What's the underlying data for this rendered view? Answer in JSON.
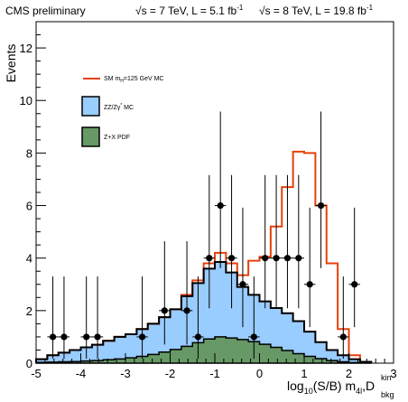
{
  "chart_data": {
    "type": "histogram",
    "header": {
      "left": "CMS preliminary",
      "sqrt_s_7": "s = 7 TeV, L = 5.1 fb",
      "sqrt_s_8": "s = 8 TeV, L = 19.8 fb",
      "sup": "-1"
    },
    "ylabel": "Events",
    "xlabel": {
      "main": "log",
      "sub1": "10",
      "mid": "(S/B) m",
      "sub2": "4l",
      "sep": ",D",
      "sup3": "kin",
      "sub3": "bkg"
    },
    "xlim": [
      -5,
      3
    ],
    "ylim": [
      0,
      13
    ],
    "x_ticks": [
      "-5",
      "-4",
      "-3",
      "-2",
      "-1",
      "0",
      "1",
      "2",
      "3"
    ],
    "y_ticks": [
      "0",
      "2",
      "4",
      "6",
      "8",
      "10",
      "12"
    ],
    "bin_edges": [
      -5,
      -4.75,
      -4.5,
      -4.25,
      -4,
      -3.75,
      -3.5,
      -3.25,
      -3,
      -2.75,
      -2.5,
      -2.25,
      -2,
      -1.75,
      -1.5,
      -1.25,
      -1,
      -0.75,
      -0.5,
      -0.25,
      0,
      0.25,
      0.5,
      0.75,
      1,
      1.25,
      1.5,
      1.75,
      2,
      2.25,
      2.5
    ],
    "legend": [
      {
        "label": "SM m",
        "sub": "H",
        "suffix": "=125 GeV MC",
        "kind": "line",
        "color": "#e8400c"
      },
      {
        "label": "ZZ/Zγ",
        "sup": "*",
        "suffix": " MC",
        "kind": "box",
        "color": "#99ccff"
      },
      {
        "label": "Z+X PDF",
        "kind": "box",
        "color": "#669966"
      }
    ],
    "series": [
      {
        "name": "Z+X PDF",
        "color": "#669966",
        "values": [
          0.03,
          0.04,
          0.05,
          0.06,
          0.08,
          0.1,
          0.13,
          0.16,
          0.2,
          0.26,
          0.33,
          0.42,
          0.52,
          0.64,
          0.78,
          0.92,
          1.0,
          0.96,
          0.9,
          0.82,
          0.72,
          0.6,
          0.48,
          0.36,
          0.26,
          0.17,
          0.1,
          0.05,
          0.02,
          0.0
        ]
      },
      {
        "name": "ZZ/Zγ* MC",
        "color": "#99ccff",
        "values": [
          0.15,
          0.3,
          0.4,
          0.5,
          0.6,
          0.7,
          0.85,
          1.0,
          1.1,
          1.3,
          1.5,
          1.75,
          2.05,
          2.55,
          3.05,
          3.6,
          3.85,
          3.45,
          2.9,
          2.6,
          2.35,
          2.1,
          1.9,
          1.6,
          1.2,
          0.8,
          0.5,
          0.3,
          0.15,
          0.05
        ]
      },
      {
        "name": "SM mH=125 GeV MC",
        "color": "#e8400c",
        "values": [
          0.15,
          0.3,
          0.4,
          0.5,
          0.6,
          0.7,
          0.85,
          1.0,
          1.1,
          1.3,
          1.5,
          1.75,
          2.05,
          2.6,
          3.15,
          3.8,
          4.2,
          3.8,
          3.35,
          3.9,
          4.05,
          5.2,
          6.7,
          8.05,
          8.0,
          6.0,
          3.8,
          1.3,
          0.3,
          0.05
        ]
      }
    ],
    "data_points": [
      {
        "x": -4.625,
        "y": 1
      },
      {
        "x": -4.375,
        "y": 1
      },
      {
        "x": -3.875,
        "y": 1
      },
      {
        "x": -3.625,
        "y": 1
      },
      {
        "x": -2.625,
        "y": 1
      },
      {
        "x": -2.125,
        "y": 2
      },
      {
        "x": -1.625,
        "y": 2
      },
      {
        "x": -1.375,
        "y": 1
      },
      {
        "x": -1.125,
        "y": 4
      },
      {
        "x": -0.875,
        "y": 6
      },
      {
        "x": -0.625,
        "y": 4
      },
      {
        "x": -0.375,
        "y": 3
      },
      {
        "x": -0.125,
        "y": 1
      },
      {
        "x": 0.125,
        "y": 4
      },
      {
        "x": 0.375,
        "y": 4
      },
      {
        "x": 0.625,
        "y": 4
      },
      {
        "x": 0.875,
        "y": 4
      },
      {
        "x": 1.125,
        "y": 3
      },
      {
        "x": 1.375,
        "y": 6
      },
      {
        "x": 1.875,
        "y": 1
      },
      {
        "x": 2.125,
        "y": 3
      }
    ]
  }
}
